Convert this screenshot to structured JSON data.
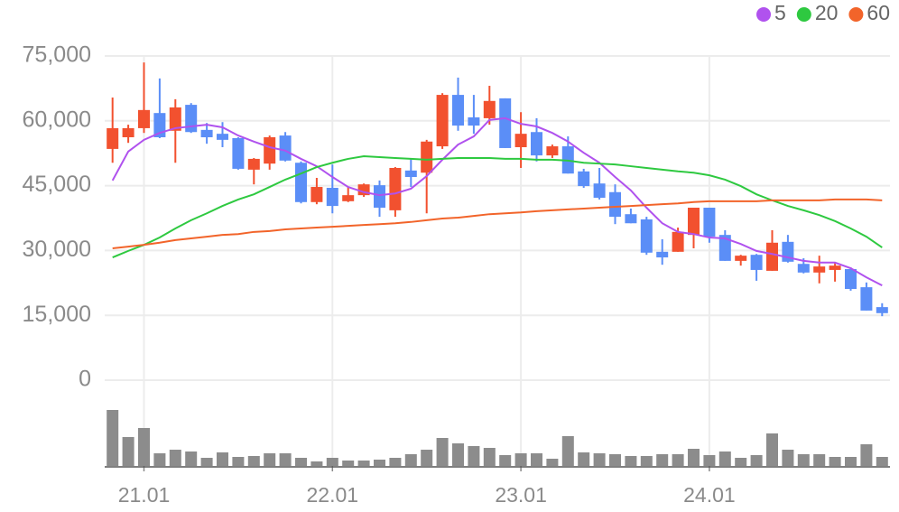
{
  "chart_data": {
    "type": "candlestick",
    "categories": [
      null,
      null,
      "21.01",
      null,
      null,
      null,
      null,
      null,
      null,
      null,
      null,
      null,
      null,
      null,
      "22.01",
      null,
      null,
      null,
      null,
      null,
      null,
      null,
      null,
      null,
      null,
      null,
      "23.01",
      null,
      null,
      null,
      null,
      null,
      null,
      null,
      null,
      null,
      null,
      null,
      "24.01",
      null,
      null,
      null,
      null,
      null,
      null,
      null,
      null,
      null,
      null,
      null
    ],
    "open": [
      53500,
      56200,
      58300,
      61800,
      57700,
      63700,
      57900,
      57000,
      56000,
      48700,
      50100,
      56600,
      50300,
      41200,
      44500,
      41400,
      42800,
      45100,
      39300,
      48500,
      48000,
      54100,
      66000,
      60800,
      60600,
      65200,
      53900,
      57400,
      52000,
      54100,
      48300,
      45500,
      43500,
      38400,
      37200,
      29700,
      29700,
      33600,
      39900,
      33600,
      27600,
      29000,
      25300,
      32000,
      26900,
      24900,
      25500,
      25700,
      21500,
      16900
    ],
    "high": [
      65400,
      59100,
      73500,
      69800,
      65000,
      64100,
      59500,
      59700,
      56200,
      51400,
      56600,
      57400,
      50600,
      46800,
      49900,
      44700,
      45500,
      46200,
      49300,
      51200,
      55600,
      66400,
      70000,
      66000,
      68100,
      65200,
      62000,
      60600,
      54500,
      56400,
      48900,
      49100,
      45300,
      39700,
      37800,
      32600,
      35300,
      39900,
      39900,
      34700,
      29000,
      29200,
      34700,
      33600,
      28200,
      28800,
      27200,
      26100,
      22600,
      17800
    ],
    "low": [
      50300,
      54900,
      57200,
      56000,
      50300,
      57200,
      54700,
      53900,
      48700,
      45300,
      48700,
      50600,
      40900,
      40700,
      38600,
      41200,
      42400,
      37800,
      37800,
      44700,
      38600,
      53500,
      57700,
      57000,
      59100,
      53700,
      49100,
      50600,
      51400,
      47800,
      44500,
      41800,
      36100,
      36300,
      29000,
      26700,
      29700,
      30500,
      31800,
      27600,
      26500,
      23000,
      25300,
      27200,
      24700,
      22400,
      22800,
      20700,
      16100,
      14800
    ],
    "close": [
      58300,
      58300,
      62500,
      56200,
      63100,
      57400,
      56200,
      55600,
      48900,
      51200,
      56200,
      50800,
      41200,
      44700,
      40300,
      42800,
      45300,
      39900,
      49100,
      47000,
      55200,
      66000,
      58900,
      58900,
      64600,
      53700,
      57000,
      52000,
      54100,
      47800,
      44900,
      42200,
      37800,
      36300,
      29500,
      28400,
      34300,
      39900,
      33200,
      27600,
      28800,
      25500,
      31800,
      27400,
      24900,
      26300,
      26500,
      21100,
      16100,
      15500
    ],
    "volume": [
      62,
      32,
      42,
      14,
      18,
      16,
      9,
      15,
      10,
      11,
      14,
      14,
      9,
      5,
      9,
      6,
      6,
      7,
      9,
      13,
      18,
      31,
      25,
      22,
      20,
      12,
      14,
      14,
      8,
      33,
      15,
      14,
      13,
      11,
      11,
      13,
      13,
      19,
      12,
      16,
      9,
      12,
      36,
      18,
      13,
      13,
      10,
      10,
      24,
      10
    ],
    "up_color": "#f2512f",
    "down_color": "#5b8ef7",
    "volume_color": "#8c8c8c",
    "ylim": [
      0,
      75000
    ],
    "yticks": [
      0,
      {
        "value": 15000,
        "label": "15,000"
      },
      {
        "value": 30000,
        "label": "30,000"
      },
      {
        "value": 45000,
        "label": "45,000"
      },
      {
        "value": 60000,
        "label": "60,000"
      },
      {
        "value": 75000,
        "label": "75,000"
      }
    ],
    "grid": true,
    "legend": "top-right",
    "series": [
      {
        "name": "5",
        "color": "#b052ee",
        "values": [
          46200,
          52900,
          55600,
          57200,
          58300,
          58700,
          59100,
          58500,
          56600,
          55200,
          53900,
          53100,
          51200,
          49500,
          47000,
          44700,
          43500,
          42800,
          43200,
          44300,
          47200,
          51000,
          54500,
          56400,
          60200,
          60600,
          59300,
          58700,
          57200,
          55200,
          52600,
          50300,
          47000,
          43900,
          39900,
          36300,
          34300,
          33800,
          33000,
          32800,
          31500,
          29900,
          29200,
          28400,
          27600,
          27200,
          27200,
          25900,
          23800,
          21900
        ]
      },
      {
        "name": "20",
        "color": "#2ec940",
        "values": [
          28400,
          29900,
          31300,
          33000,
          35100,
          37000,
          38600,
          40300,
          41800,
          43000,
          44700,
          46400,
          47800,
          49300,
          50300,
          51200,
          51800,
          51600,
          51400,
          51200,
          51000,
          51200,
          51400,
          51400,
          51400,
          51200,
          51200,
          51000,
          51000,
          50800,
          50300,
          50100,
          49900,
          49500,
          49100,
          48700,
          48300,
          48000,
          47400,
          46400,
          44900,
          43000,
          41600,
          40300,
          39300,
          38200,
          36800,
          35100,
          33200,
          30700
        ]
      },
      {
        "name": "60",
        "color": "#f2642a",
        "values": [
          30500,
          30900,
          31300,
          31800,
          32400,
          32800,
          33200,
          33600,
          33800,
          34300,
          34500,
          34900,
          35100,
          35300,
          35500,
          35700,
          35900,
          36100,
          36300,
          36600,
          37000,
          37400,
          37600,
          38000,
          38400,
          38600,
          38800,
          39100,
          39300,
          39500,
          39700,
          39900,
          40100,
          40300,
          40500,
          40700,
          40900,
          41200,
          41400,
          41400,
          41400,
          41400,
          41600,
          41600,
          41600,
          41600,
          41800,
          41800,
          41800,
          41600
        ]
      }
    ]
  }
}
